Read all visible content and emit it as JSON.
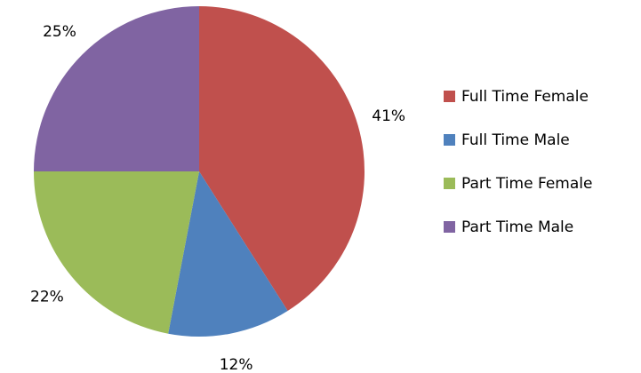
{
  "chart_data": {
    "type": "pie",
    "categories": [
      "Full Time Female",
      "Full Time Male",
      "Part Time Female",
      "Part Time Male"
    ],
    "values": [
      41,
      12,
      22,
      25
    ],
    "value_labels": [
      "41%",
      "12%",
      "22%",
      "25%"
    ],
    "colors": [
      "#c0504d",
      "#4f81bd",
      "#9bbb59",
      "#8064a2"
    ],
    "legend": "right"
  }
}
